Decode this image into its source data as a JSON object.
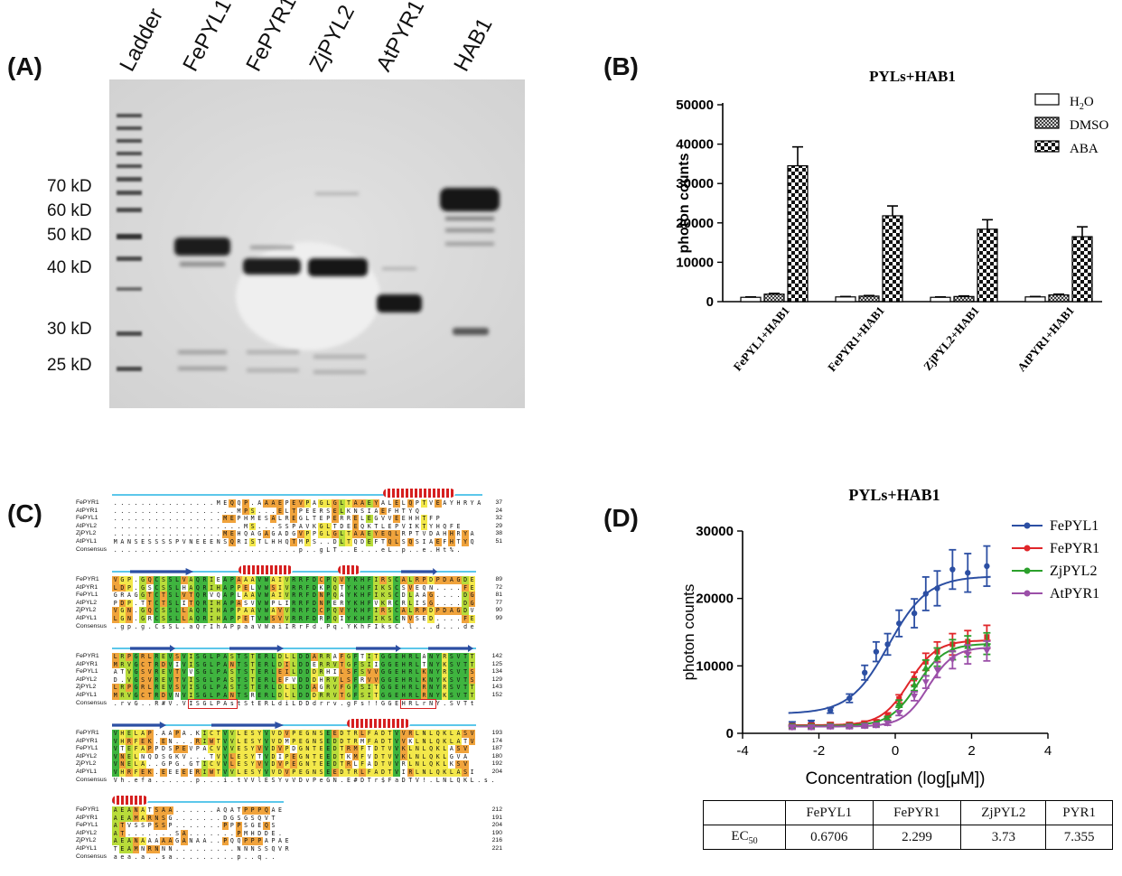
{
  "panel_a": {
    "label": "(A)",
    "lanes": [
      "Ladder",
      "FePYL1",
      "FePYR1",
      "ZjPYL2",
      "AtPYR1",
      "HAB1"
    ],
    "markers": [
      "70 kD",
      "60 kD",
      "50 kD",
      "40 kD",
      "30 kD",
      "25 kD"
    ]
  },
  "panel_b": {
    "label": "(B)",
    "chart_data": {
      "type": "bar",
      "title": "PYLs+HAB1",
      "ylabel": "photon counts",
      "xlabel": "",
      "ylim": [
        0,
        50000
      ],
      "yticks": [
        "0",
        "10000",
        "20000",
        "30000",
        "40000",
        "50000"
      ],
      "categories": [
        "FePYL1+HAB1",
        "FePYR1+HAB1",
        "ZjPYL2+HAB1",
        "AtPYR1+HAB1"
      ],
      "legend_position": "top-right",
      "legend_labels": [
        "H",
        "2",
        "O",
        "DMSO",
        "ABA"
      ],
      "series": [
        {
          "name": "H2O",
          "values": [
            1100,
            1200,
            1100,
            1200
          ],
          "errors": [
            100,
            100,
            100,
            100
          ]
        },
        {
          "name": "DMSO",
          "values": [
            1900,
            1400,
            1300,
            1700
          ],
          "errors": [
            200,
            150,
            150,
            200
          ]
        },
        {
          "name": "ABA",
          "values": [
            34500,
            21800,
            18400,
            16500
          ],
          "errors": [
            4800,
            2500,
            2400,
            2500
          ]
        }
      ]
    }
  },
  "panel_c": {
    "label": "(C)",
    "blocks": [
      {
        "names": [
          "FePYR1",
          "AtPYR1",
          "FePYL1",
          "AtPYL2",
          "ZjPYL2",
          "AtPYL1",
          "Consensus"
        ],
        "seqs": [
          "...............MEQQP.AAAEPEVPAGLGLTAAEYALELQPTVEAYHRYA",
          "..................MPS...ELTPEERSELKNSIAEFHTYQ",
          "................MEPHMESALREGLTEPERRELEGVVEEHHTFP",
          "...................MS...SSPAVKGLTDEEQKTLEPVIKTYHQFE",
          "................MEHQAGAGADGVPPGLGLTAAEYEQLRPTVDAHHRYA",
          "MANSESSSSPVNEEENSQRISTLHHQTMPS..DLTQDEFTQLSQSIAEFHTYQ",
          "...........................p..gLT..E...eL.p..e.Ht%."
        ],
        "nums": [
          "37",
          "24",
          "32",
          "29",
          "38",
          "51",
          ""
        ]
      },
      {
        "names": [
          "FePYR1",
          "AtPYR1",
          "FePYL1",
          "AtPYL2",
          "ZjPYL2",
          "AtPYL1",
          "Consensus"
        ],
        "seqs": [
          "VGP.GQCSSLVAQRIEAPAAAVWAIVRRFDCPQVYKHFIRSCALRPDPDAGDE",
          "LDP.GSCSSLHAQRIHAPPELVWSIVRRFDKPQTYKHFIKSCSVEQN....FE",
          "GRAGGTCTSLVTQRVQAPLAAVWAIVRRFDNPQAYKHFIKSCDLAAG....DG",
          "PDP.TTCTSLITQRIHAPASVVWPLIRRFDNPERYKHFVKRCRLISG....DG",
          "VGN.GQCSSLLAQRIHAPPAAVWAVVRRFDCPQVYKHFIRSCALRPDPDAGDV",
          "LGN.GRCSSLLAQRIHAPPETVWSVVRRFDRPQIYKHFIKSCNVSED....FE",
          ".gp.g.CsSL.aQrIhAPpaaVWaiIRrFd.Pq.YKhFIksC.l...d...de"
        ],
        "nums": [
          "89",
          "72",
          "81",
          "77",
          "90",
          "99",
          ""
        ]
      },
      {
        "names": [
          "FePYR1",
          "AtPYR1",
          "FePYL1",
          "AtPYL2",
          "ZjPYL2",
          "AtPYL1",
          "Consensus"
        ],
        "seqs": [
          "LRPGRLREVSVISGLPASTSTERLDLLDDARRAFGFTITGGEHRLANYRSVTT",
          "MRVGCTRDVIVISGLPANTSTERLDILDDERRVTGFSIIGGEHRLTNYKSVTT",
          "ATVGSVREVTVVSGLPASTSTERLEILDDDRHILSFSVVGGEHRLKNYRSVTS",
          "D.VGSVREVTVISGLPASTSTERLEFVDDDHRVLSFRVVGGEHRLKNYKSVTS",
          "LRPGRLREVSVISGLPASTSTERLDLLDDAGRVFGFSITGGEHRLRNYRSVTT",
          "MRVGCTRDVNVISGLPANTSRERLDLLDDDRRVTGFSITGGEHRLRNYKSVTT",
          ".rvG..R#V.VISGLPAstStERLdiLDDdrrv.gFs!!GGEHRLrNY.SVTt"
        ],
        "nums": [
          "142",
          "125",
          "134",
          "129",
          "143",
          "152",
          ""
        ]
      },
      {
        "names": [
          "FePYR1",
          "AtPYR1",
          "FePYL1",
          "AtPYL2",
          "ZjPYL2",
          "AtPYL1",
          "Consensus"
        ],
        "seqs": [
          "VHELAP.AAPA.KICTVVLESYVVDVPEGNSEEDTRLFADTVVRLNLQKLASV",
          "VHRFEK.EN...RIWTVVLESYVVDMPEGNSEDDTRMFADTVVKLNLQKLATV",
          "VTEFAPPDSPEVPACVVVESYVVDVPDGNTEEDTRMFTDTVVKLNLQKLASV",
          "VNELNQDSGKV...TVVLESYTVDIPEGNTEEDTKMFVDTVVKLNLQKLGVA",
          "VNELA..GPG.GTICVVLESYVVDVPEGNTEEDTRLFADTVVRLNLQKLKSV",
          "VHRFEK.EEEEERIWTVVLESYVVDVPEGNSEEDTRLFADTVIRLNLQKLASI",
          "Vh.efa......p...i.tVVlESYvVDvPeGN.E#DTr$FaDTV!.LNLQKL.s."
        ],
        "nums": [
          "193",
          "174",
          "187",
          "180",
          "192",
          "204",
          ""
        ]
      },
      {
        "names": [
          "FePYR1",
          "AtPYR1",
          "FePYL1",
          "AtPYL2",
          "ZjPYL2",
          "AtPYL1",
          "Consensus"
        ],
        "seqs": [
          "AEANATSAA......AQATPPPQAE",
          "AEAMARNSG.......DGSGSQVT",
          "ATVSSPSSP.......PPPSGEQS",
          "AT.......SA.......PMHDDE.",
          "AEANAAAAAGANAA..PQQPPPAPAE",
          "TEAMNRNNN.........NNNSSQVR",
          "aea.a..sa.........p..q.."
        ],
        "nums": [
          "212",
          "191",
          "204",
          "190",
          "216",
          "221",
          ""
        ]
      }
    ]
  },
  "panel_d": {
    "label": "(D)",
    "chart_data": {
      "type": "scatter",
      "title": "PYLs+HAB1",
      "xlabel": "Concentration (log[μM])",
      "ylabel": "photon counts",
      "xlim": [
        -4,
        4
      ],
      "ylim": [
        0,
        30000
      ],
      "xticks": [
        "-4",
        "-2",
        "0",
        "2",
        "4"
      ],
      "yticks": [
        "0",
        "10000",
        "20000",
        "30000"
      ],
      "legend_position": "top-right",
      "x": [
        -2.7,
        -2.2,
        -1.7,
        -1.2,
        -0.8,
        -0.5,
        -0.2,
        0.1,
        0.5,
        0.8,
        1.1,
        1.5,
        1.9,
        2.4
      ],
      "series": [
        {
          "name": "FePYL1",
          "color": "#2c4fa3",
          "ec50": 0.6706,
          "bottom": 2900,
          "top": 23300,
          "hill": 0.85,
          "values": [
            1400,
            1600,
            3400,
            5200,
            9000,
            12100,
            13200,
            16300,
            17800,
            20700,
            21500,
            24300,
            23800,
            24800
          ]
        },
        {
          "name": "FePYR1",
          "color": "#e0262a",
          "ec50": 2.299,
          "bottom": 1200,
          "top": 13800,
          "hill": 1.2,
          "values": [
            1100,
            1200,
            1300,
            1300,
            1500,
            1700,
            2700,
            5100,
            8100,
            10600,
            12100,
            13200,
            13600,
            14300
          ]
        },
        {
          "name": "ZjPYL2",
          "color": "#2ca02c",
          "ec50": 3.73,
          "bottom": 1100,
          "top": 13300,
          "hill": 1.2,
          "values": [
            1000,
            1000,
            1100,
            1100,
            1200,
            1300,
            2200,
            4400,
            7200,
            9700,
            11300,
            12400,
            12900,
            13300
          ]
        },
        {
          "name": "AtPYR1",
          "color": "#9b4fa8",
          "ec50": 7.355,
          "bottom": 1000,
          "top": 12800,
          "hill": 1.3,
          "values": [
            900,
            900,
            1000,
            1000,
            1100,
            1200,
            1500,
            3000,
            5500,
            7600,
            9400,
            10900,
            11700,
            12200
          ]
        }
      ]
    },
    "ec50_table": {
      "headers": [
        "",
        "FePYL1",
        "FePYR1",
        "ZjPYL2",
        "PYR1"
      ],
      "row_label": "EC",
      "row_label_sub": "50",
      "values": [
        "0.6706",
        "2.299",
        "3.73",
        "7.355"
      ]
    }
  }
}
